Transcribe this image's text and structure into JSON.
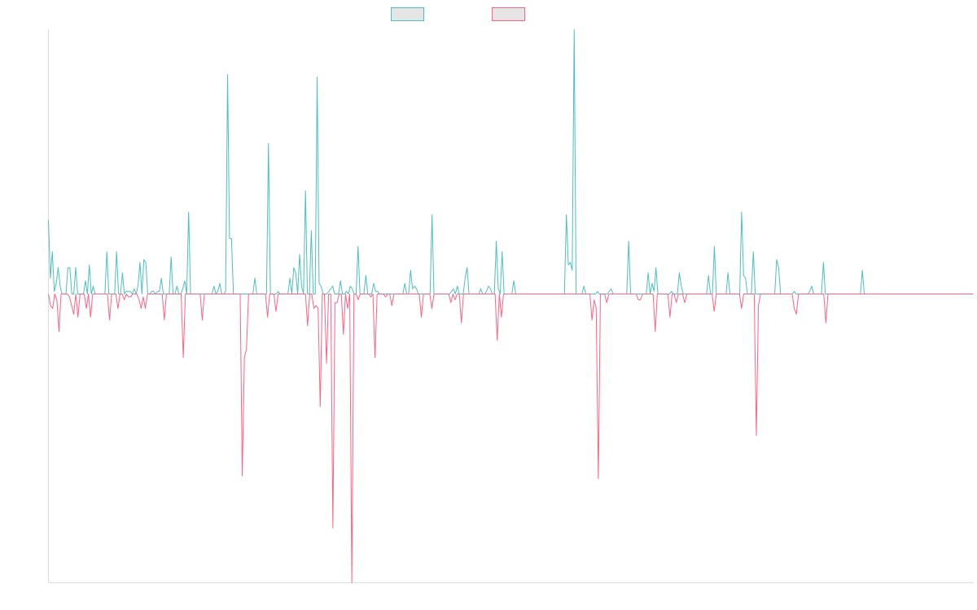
{
  "chart_data": {
    "type": "line",
    "title": "",
    "xlabel": "",
    "ylabel": "",
    "grid": false,
    "legend_placement": "top-center",
    "ylim": [
      -1,
      1
    ],
    "series": [
      {
        "color": "#4bc0c0",
        "swatch_fill": "#e5e5e5",
        "values": [
          0.28,
          0.06,
          0.16,
          0.01,
          0.04,
          0.1,
          0.03,
          0,
          0,
          0,
          0.1,
          0.1,
          0,
          0,
          0.1,
          0,
          0,
          0,
          0,
          0.05,
          0,
          0.11,
          0,
          0.03,
          0,
          0,
          0,
          0,
          0,
          0,
          0.16,
          0,
          0,
          0,
          0,
          0.16,
          0,
          0,
          0.08,
          0,
          0.01,
          0.01,
          0.01,
          0,
          0.02,
          0,
          0.03,
          0.12,
          0,
          0.13,
          0.12,
          0,
          0,
          0.01,
          0.01,
          0,
          0.01,
          0.01,
          0.06,
          0,
          0,
          0,
          0,
          0.14,
          0,
          0,
          0.03,
          0,
          0,
          0.02,
          0.05,
          0,
          0.31,
          0,
          0,
          0,
          0,
          0,
          0,
          0,
          0,
          0,
          0,
          0,
          0,
          0.03,
          0,
          0.01,
          0.04,
          0,
          0,
          0.01,
          0.83,
          0.21,
          0.21,
          0,
          0,
          0,
          0,
          0,
          0,
          0,
          0,
          0,
          0,
          0,
          0.06,
          0,
          0,
          0,
          0,
          0,
          0,
          0.57,
          0,
          0,
          0,
          0,
          0.01,
          0,
          0,
          0,
          0,
          0,
          0.06,
          0,
          0.1,
          0.08,
          0,
          0.15,
          0.03,
          0,
          0.39,
          0,
          0,
          0.24,
          0,
          0,
          0.82,
          0.04,
          0.03,
          0,
          0,
          0,
          0.01,
          0.02,
          0.03,
          0,
          0,
          0,
          0.05,
          0,
          0,
          0.01,
          0,
          0.03,
          0.02,
          0,
          0,
          0.18,
          0,
          0,
          0,
          0.07,
          0,
          0,
          0,
          0.04,
          0.01,
          0.01,
          0,
          0,
          0,
          0,
          0,
          0,
          0,
          0,
          0,
          0,
          0,
          0,
          0,
          0.04,
          0,
          0,
          0.09,
          0.02,
          0.03,
          0.02,
          0,
          0,
          0,
          0,
          0,
          0,
          0,
          0.3,
          0,
          0,
          0,
          0,
          0,
          0,
          0,
          0,
          0,
          0.01,
          0.02,
          0,
          0.03,
          0,
          0,
          0,
          0.06,
          0.1,
          0,
          0,
          0,
          0,
          0,
          0,
          0.02,
          0,
          0,
          0.01,
          0.03,
          0.02,
          0,
          0,
          0.2,
          0.02,
          0,
          0.16,
          0,
          0,
          0,
          0,
          0,
          0.05,
          0,
          0,
          0,
          0,
          0,
          0,
          0,
          0,
          0,
          0,
          0,
          0,
          0,
          0,
          0,
          0,
          0,
          0,
          0,
          0,
          0,
          0,
          0,
          0,
          0,
          0,
          0.3,
          0.11,
          0.12,
          0.09,
          1,
          0,
          0,
          0,
          0,
          0.03,
          0,
          0,
          0,
          0,
          0,
          0,
          0.01,
          0,
          0,
          0,
          0,
          0,
          0.01,
          0.02,
          0,
          0,
          0,
          0,
          0,
          0,
          0,
          0,
          0.2,
          0,
          0,
          0,
          0,
          0,
          0,
          0,
          0,
          0,
          0.08,
          0,
          0.04,
          0.01,
          0.1,
          0,
          0,
          0,
          0,
          0,
          0,
          0,
          0.01,
          0,
          0,
          0,
          0.08,
          0.03,
          0,
          0,
          0,
          0,
          0,
          0,
          0,
          0,
          0,
          0,
          0,
          0,
          0,
          0.07,
          0,
          0,
          0.18,
          0,
          0,
          0,
          0,
          0,
          0,
          0.08,
          0,
          0,
          0,
          0,
          0,
          0,
          0.31,
          0.07,
          0.06,
          0,
          0,
          0,
          0.16,
          0,
          0,
          0,
          0,
          0,
          0,
          0,
          0,
          0,
          0,
          0,
          0.13,
          0.1,
          0,
          0,
          0,
          0,
          0,
          0,
          0,
          0.01,
          0,
          0,
          0,
          0,
          0,
          0,
          0,
          0.01,
          0.03,
          0,
          0,
          0,
          0,
          0,
          0.12,
          0,
          0,
          0,
          0,
          0,
          0,
          0,
          0,
          0,
          0,
          0,
          0,
          0,
          0,
          0,
          0,
          0,
          0,
          0,
          0.09,
          0,
          0,
          0,
          0,
          0,
          0,
          0,
          0,
          0,
          0,
          0,
          0,
          0,
          0,
          0,
          0,
          0,
          0,
          0,
          0,
          0,
          0,
          0,
          0,
          0,
          0,
          0,
          0,
          0,
          0,
          0,
          0,
          0,
          0,
          0,
          0,
          0,
          0,
          0,
          0,
          0,
          0,
          0,
          0,
          0,
          0,
          0,
          0,
          0,
          0,
          0,
          0,
          0,
          0,
          0,
          0,
          0
        ]
      },
      {
        "color": "#ff6384",
        "swatch_fill": "#e5e5e5",
        "values": [
          0,
          -0.04,
          -0.05,
          0,
          -0.02,
          -0.13,
          0,
          0,
          0,
          0,
          -0.01,
          -0.04,
          -0.07,
          0,
          -0.08,
          0,
          0,
          0,
          -0.05,
          0,
          -0.08,
          0,
          0,
          0,
          0,
          0,
          0,
          0,
          0,
          -0.09,
          0,
          0,
          0,
          -0.05,
          0,
          0,
          -0.02,
          0,
          -0.01,
          -0.01,
          0,
          0,
          0,
          -0.02,
          -0.05,
          -0.01,
          -0.05,
          0,
          0,
          0,
          0,
          0,
          0,
          0,
          0,
          -0.09,
          0,
          0,
          0,
          0,
          0,
          0,
          0,
          0,
          -0.22,
          0,
          0,
          0,
          0,
          0,
          0,
          0,
          0,
          -0.09,
          0,
          0,
          0,
          0,
          0,
          0,
          0,
          0,
          0,
          0,
          0,
          0,
          0,
          0,
          0,
          0,
          0,
          0,
          -0.63,
          -0.22,
          -0.19,
          0,
          0,
          0,
          0,
          0,
          0,
          0,
          0,
          0,
          -0.08,
          0,
          0,
          0,
          -0.06,
          0,
          0,
          0,
          0,
          0,
          0,
          0,
          0,
          0,
          0,
          0,
          0,
          0,
          0,
          -0.11,
          0,
          0,
          -0.05,
          -0.04,
          -0.05,
          -0.39,
          0,
          0,
          -0.24,
          0,
          0,
          -0.81,
          -0.03,
          -0.03,
          0,
          0,
          -0.14,
          0,
          -0.05,
          0,
          -1,
          0,
          0,
          -0.02,
          0,
          0,
          0,
          0,
          0,
          -0.01,
          0,
          -0.22,
          0,
          0,
          0,
          0,
          -0.01,
          0,
          0,
          -0.04,
          0,
          0,
          0,
          0,
          0,
          0,
          0,
          0,
          0,
          0,
          0,
          0,
          0,
          -0.08,
          0,
          0,
          0,
          0,
          -0.05,
          0,
          0,
          0,
          0,
          0,
          0,
          0,
          0,
          -0.03,
          0,
          -0.02,
          0,
          0,
          -0.1,
          0,
          0,
          0,
          0,
          0,
          0,
          0,
          0,
          0,
          0,
          0,
          0,
          0,
          0,
          0,
          0,
          -0.16,
          0,
          -0.08,
          0,
          0,
          0,
          0,
          0,
          0,
          0,
          0,
          0,
          0,
          0,
          0,
          0,
          0,
          0,
          0,
          0,
          0,
          0,
          0,
          0,
          0,
          0,
          0,
          0,
          0,
          0,
          0,
          0,
          0,
          0,
          0,
          0,
          0,
          0,
          0,
          0,
          0,
          0,
          0,
          0,
          0,
          -0.09,
          -0.02,
          -0.05,
          -0.64,
          0,
          0,
          0,
          -0.03,
          0,
          0,
          0,
          0,
          0,
          0,
          0,
          0,
          0,
          0,
          0,
          0,
          0,
          0,
          -0.02,
          -0.02,
          0,
          0,
          0,
          0,
          0,
          0,
          -0.13,
          0,
          0,
          0,
          0,
          0,
          0,
          -0.08,
          0,
          0,
          -0.03,
          0,
          0,
          0,
          -0.03,
          0,
          0,
          0,
          0,
          0,
          0,
          0,
          0,
          0,
          0,
          0,
          0,
          0,
          -0.06,
          0,
          0,
          0,
          0,
          0,
          0,
          0,
          0,
          0,
          0,
          0,
          0,
          -0.05,
          0,
          0,
          0,
          0,
          0,
          0,
          -0.49,
          -0.04,
          0,
          0,
          0,
          0,
          0,
          0,
          0,
          0,
          0,
          0,
          0,
          0,
          0,
          0,
          0,
          0,
          -0.05,
          -0.07,
          0,
          0,
          0,
          0,
          0,
          0,
          0,
          0,
          0,
          0,
          0,
          0,
          0,
          -0.1,
          0,
          0,
          0,
          0,
          0,
          0,
          0,
          0,
          0,
          0,
          0,
          0,
          0,
          0,
          0,
          0,
          0,
          0,
          0,
          0,
          0,
          0,
          0,
          0,
          0,
          0,
          0,
          0,
          0,
          0,
          0,
          0,
          0,
          0,
          0,
          0,
          0,
          0,
          0,
          0,
          0,
          0,
          0,
          0,
          0,
          0,
          0,
          0,
          0,
          0,
          0,
          0,
          0,
          0,
          0,
          0,
          0,
          0,
          0,
          0,
          0,
          0,
          0,
          0,
          0,
          0,
          0,
          0,
          0,
          0
        ]
      }
    ]
  }
}
